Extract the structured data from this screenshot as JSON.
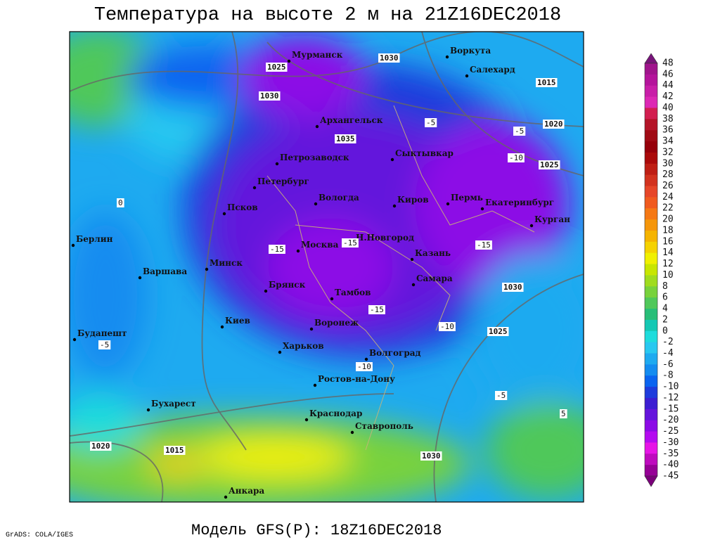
{
  "header": {
    "title": "Температура на высоте 2 м на 21Z16DEC2018"
  },
  "footer": {
    "model": "Модель GFS(P): 18Z16DEC2018",
    "credit": "GrADS: COLA/IGES"
  },
  "colorbar": {
    "labels": [
      48,
      46,
      44,
      42,
      40,
      38,
      36,
      34,
      32,
      30,
      28,
      26,
      24,
      22,
      20,
      18,
      16,
      14,
      12,
      10,
      8,
      6,
      4,
      2,
      0,
      -2,
      -4,
      -6,
      -8,
      -10,
      -12,
      -15,
      -20,
      -25,
      -30,
      -35,
      -40,
      -45
    ],
    "colors": [
      "#a0148c",
      "#b4149b",
      "#c81ea8",
      "#dc28b4",
      "#d21e50",
      "#b41428",
      "#a00a14",
      "#96000a",
      "#aa0a0a",
      "#be1e14",
      "#d2321e",
      "#e64628",
      "#f05a1e",
      "#f57814",
      "#f5960a",
      "#f5b400",
      "#f5d200",
      "#f0f000",
      "#c8e600",
      "#a0dc1e",
      "#78d23c",
      "#50c85a",
      "#28be78",
      "#14c8b4",
      "#1edcdc",
      "#28c8f0",
      "#1eaaf0",
      "#148cf0",
      "#0a64f0",
      "#1e3cdc",
      "#3c1ed2",
      "#6414dc",
      "#8c0ae6",
      "#b40af0",
      "#e614e6",
      "#be0abe",
      "#960096"
    ]
  },
  "cities": [
    "Мурманск",
    "Воркута",
    "Салехард",
    "Архангельск",
    "Сыктывкар",
    "Петрозаводск",
    "Петербург",
    "Вологда",
    "Киров",
    "Пермь",
    "Екатеринбург",
    "Курган",
    "Псков",
    "Москва",
    "Н.Новгород",
    "Казань",
    "Минск",
    "Берлин",
    "Варшава",
    "Брянск",
    "Тамбов",
    "Самара",
    "Киев",
    "Воронеж",
    "Харьков",
    "Будапешт",
    "Волгоград",
    "Ростов-на-Дону",
    "Бухарест",
    "Краснодар",
    "Ставрополь",
    "Анкара"
  ],
  "isobar_labels": [
    1025,
    1030,
    1015,
    1030,
    1035,
    1020,
    1025,
    1030,
    1025,
    1020,
    1015,
    1030
  ],
  "temperature_labels": [
    -5,
    -10,
    -15,
    -15,
    -10,
    -5,
    -5,
    0,
    5,
    -5,
    -10,
    -15,
    -15
  ]
}
